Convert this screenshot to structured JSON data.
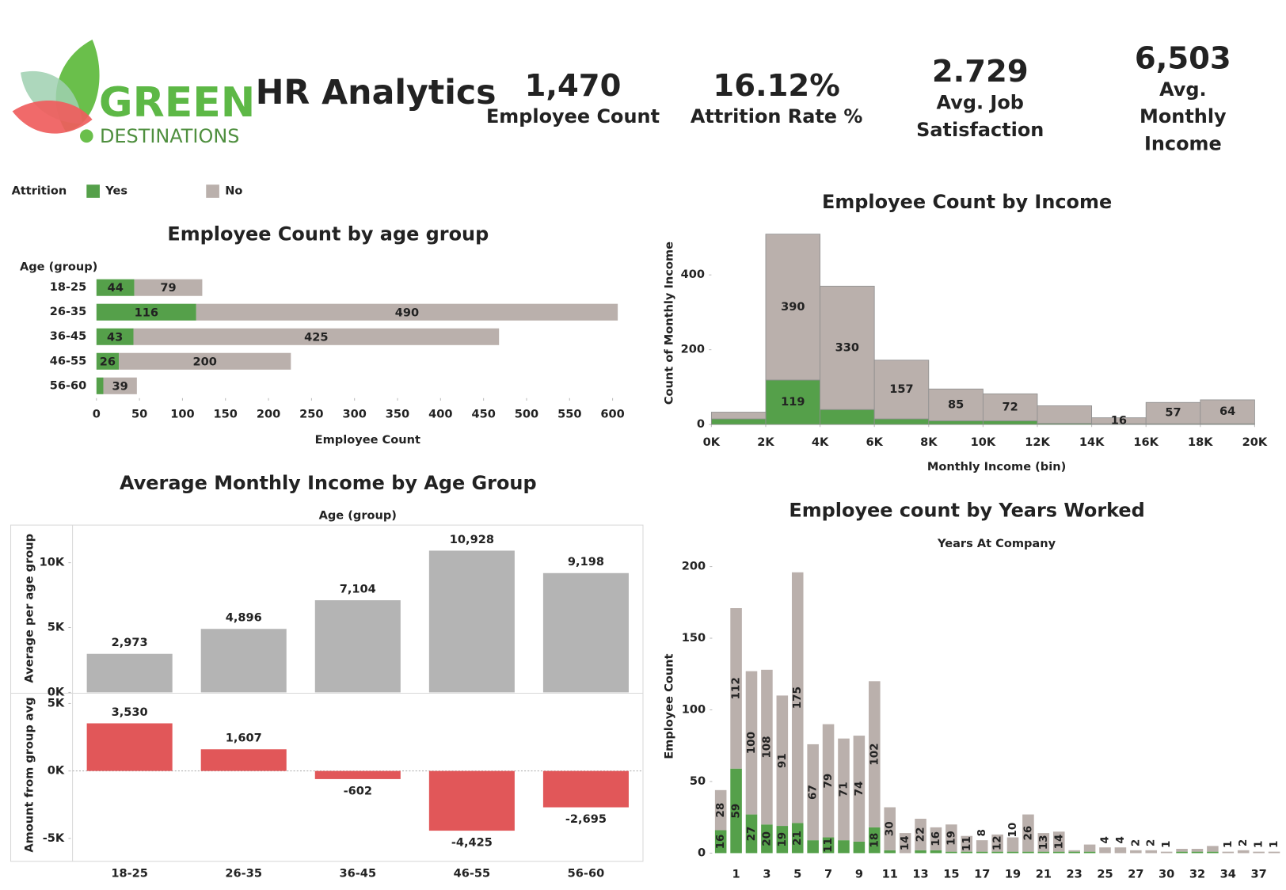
{
  "header": {
    "logo_top": "GREEN",
    "logo_bottom": "DESTINATIONS",
    "title": "HR Analytics"
  },
  "kpis": [
    {
      "value": "1,470",
      "label": "Employee Count"
    },
    {
      "value": "16.12%",
      "label": "Attrition Rate %"
    },
    {
      "value": "2.729",
      "label": "Avg. Job Satisfaction"
    },
    {
      "value": "6,503",
      "label": "Avg. Monthly Income"
    }
  ],
  "chart_data": [
    {
      "type": "bar",
      "orientation": "horizontal",
      "stacked": true,
      "title": "Employee Count by age group",
      "y_label": "Age (group)",
      "x_label": "Employee Count",
      "legend_title": "Attrition",
      "categories": [
        "18-25",
        "26-35",
        "36-45",
        "46-55",
        "56-60"
      ],
      "series": [
        {
          "name": "Yes",
          "color": "#55a04a",
          "values": [
            44,
            116,
            43,
            26,
            8
          ],
          "value_labels": [
            "44",
            "116",
            "43",
            "26",
            null
          ]
        },
        {
          "name": "No",
          "color": "#bab0ac",
          "values": [
            79,
            490,
            425,
            200,
            39
          ],
          "value_labels": [
            "79",
            "490",
            "425",
            "200",
            "39"
          ]
        }
      ],
      "xlim": [
        0,
        620
      ],
      "xticks": [
        0,
        50,
        100,
        150,
        200,
        250,
        300,
        350,
        400,
        450,
        500,
        550,
        600
      ]
    },
    {
      "type": "histogram",
      "stacked": true,
      "title": "Employee Count by Income",
      "y_label": "Count of Monthly Income",
      "x_label": "Monthly Income (bin)",
      "bins": [
        0,
        2000,
        4000,
        6000,
        8000,
        10000,
        12000,
        14000,
        16000,
        18000,
        20000
      ],
      "series": [
        {
          "name": "Yes",
          "color": "#55a04a",
          "values": [
            15,
            119,
            40,
            15,
            10,
            10,
            3,
            2,
            2,
            2
          ],
          "value_labels": [
            null,
            "119",
            null,
            null,
            null,
            null,
            null,
            null,
            null,
            null
          ]
        },
        {
          "name": "No",
          "color": "#bab0ac",
          "values": [
            18,
            390,
            330,
            157,
            85,
            72,
            47,
            16,
            57,
            64
          ],
          "value_labels": [
            null,
            "390",
            "330",
            "157",
            "85",
            "72",
            null,
            "16",
            "57",
            "64"
          ]
        }
      ],
      "xlim": [
        0,
        20000
      ],
      "xticks": [
        {
          "value": 0,
          "label": "0K"
        },
        {
          "value": 2000,
          "label": "2K"
        },
        {
          "value": 4000,
          "label": "4K"
        },
        {
          "value": 6000,
          "label": "6K"
        },
        {
          "value": 8000,
          "label": "8K"
        },
        {
          "value": 10000,
          "label": "10K"
        },
        {
          "value": 12000,
          "label": "12K"
        },
        {
          "value": 14000,
          "label": "14K"
        },
        {
          "value": 16000,
          "label": "16K"
        },
        {
          "value": 18000,
          "label": "18K"
        },
        {
          "value": 20000,
          "label": "20K"
        }
      ],
      "ylim": [
        0,
        540
      ],
      "yticks": [
        0,
        200,
        400
      ]
    },
    {
      "type": "bar",
      "title": "Average Monthly Income by Age Group",
      "x_label": "Age (group)",
      "y_label": "Average per age group",
      "values": [
        2973,
        4896,
        7104,
        10928,
        9198
      ],
      "value_labels": [
        "2,973",
        "4,896",
        "7,104",
        "10,928",
        "9,198"
      ],
      "color": "#b4b4b4",
      "ylim": [
        0,
        12900
      ],
      "yticks": [
        {
          "value": 0,
          "label": "0K"
        },
        {
          "value": 5000,
          "label": "5K"
        },
        {
          "value": 10000,
          "label": "10K"
        }
      ]
    },
    {
      "type": "bar",
      "y_label": "Amount from group avg",
      "categories": [
        "18-25",
        "26-35",
        "36-45",
        "46-55",
        "56-60"
      ],
      "values": [
        3530,
        1607,
        -602,
        -4425,
        -2695
      ],
      "value_labels": [
        "3,530",
        "1,607",
        "-602",
        "-4,425",
        "-2,695"
      ],
      "color": "#e15759",
      "ylim": [
        -6700,
        5700
      ],
      "yticks": [
        {
          "value": -5000,
          "label": "-5K"
        },
        {
          "value": 0,
          "label": "0K"
        },
        {
          "value": 5000,
          "label": "5K"
        }
      ]
    },
    {
      "type": "bar",
      "stacked": true,
      "title": "Employee count by Years Worked",
      "x_label": "Years At Company",
      "y_label": "Employee Count",
      "categories": [
        null,
        "1",
        null,
        "3",
        null,
        "5",
        null,
        "7",
        null,
        "9",
        null,
        "11",
        null,
        "13",
        null,
        "15",
        null,
        "17",
        null,
        "19",
        null,
        "21",
        null,
        "23",
        null,
        "25",
        null,
        "27",
        null,
        "30",
        null,
        "32",
        null,
        "34",
        null,
        "37",
        null
      ],
      "series": [
        {
          "name": "Yes",
          "color": "#55a04a",
          "values": [
            16,
            59,
            27,
            20,
            19,
            21,
            9,
            11,
            9,
            8,
            18,
            2,
            0,
            2,
            2,
            1,
            1,
            1,
            1,
            1,
            1,
            1,
            1,
            1,
            1,
            0,
            0,
            0,
            0,
            0,
            1,
            1,
            1,
            0,
            0,
            0,
            0
          ],
          "value_labels": [
            "16",
            "59",
            "27",
            "20",
            "19",
            "21",
            "9",
            "11",
            "9",
            "8",
            "18",
            null,
            null,
            null,
            null,
            null,
            null,
            null,
            null,
            null,
            null,
            null,
            null,
            null,
            null,
            null,
            null,
            null,
            null,
            null,
            null,
            null,
            null,
            null,
            null,
            null,
            null
          ]
        },
        {
          "name": "No",
          "color": "#bab0ac",
          "values": [
            28,
            112,
            100,
            108,
            91,
            175,
            67,
            79,
            71,
            74,
            102,
            30,
            14,
            22,
            16,
            19,
            11,
            8,
            12,
            10,
            26,
            13,
            14,
            1,
            5,
            4,
            4,
            2,
            2,
            1,
            2,
            2,
            4,
            1,
            2,
            1,
            1
          ],
          "value_labels": [
            "28",
            "112",
            "100",
            "108",
            "91",
            "175",
            "67",
            "79",
            "71",
            "74",
            "102",
            "30",
            "14",
            "22",
            "16",
            "19",
            "11",
            "8",
            "12",
            "10",
            "26",
            "13",
            "14",
            null,
            null,
            "4",
            "4",
            "2",
            "2",
            "1",
            null,
            null,
            null,
            "1",
            "2",
            "1",
            "1"
          ]
        }
      ],
      "ylim": [
        0,
        210
      ],
      "yticks": [
        0,
        50,
        100,
        150,
        200
      ]
    }
  ]
}
